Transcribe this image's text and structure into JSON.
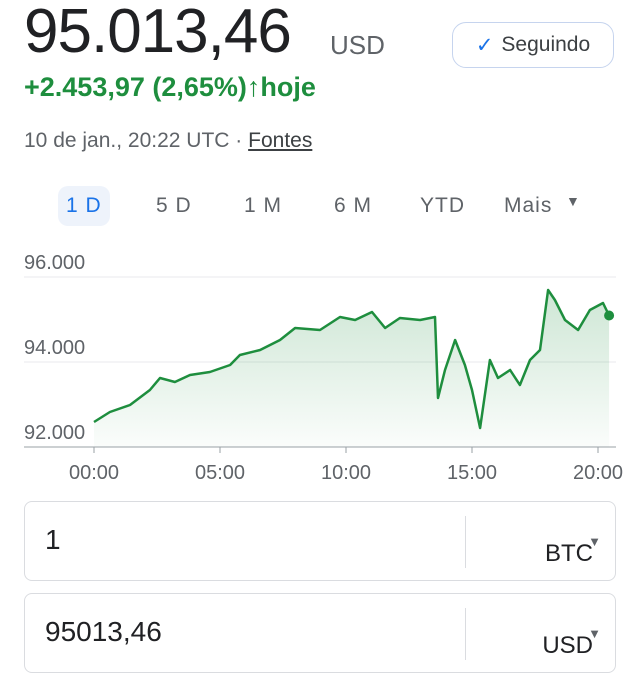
{
  "header": {
    "price": "95.013,46",
    "currency": "USD",
    "follow_button": "Seguindo",
    "change": "+2.453,97 (2,65%)",
    "change_period": "hoje",
    "timestamp": "10 de jan., 20:22 UTC ·",
    "sources_link": "Fontes"
  },
  "tabs": [
    "1 D",
    "5 D",
    "1 M",
    "6 M",
    "YTD",
    "Mais"
  ],
  "chart_data": {
    "type": "line",
    "color": "#1e8e3e",
    "grid": true,
    "x": [
      0,
      0.63,
      1.43,
      2.22,
      2.62,
      3.21,
      3.81,
      4.6,
      5.4,
      5.79,
      6.59,
      7.38,
      7.98,
      8.97,
      9.76,
      10.36,
      11.03,
      11.55,
      12.14,
      12.94,
      13.53,
      13.65,
      13.93,
      14.33,
      14.72,
      15,
      15.32,
      15.71,
      16.03,
      16.51,
      16.9,
      17.3,
      17.7,
      18.02,
      18.29,
      18.69,
      19.21,
      19.68,
      20.2,
      20.44
    ],
    "values": [
      92588,
      92824,
      92988,
      93341,
      93624,
      93529,
      93694,
      93765,
      93929,
      94165,
      94282,
      94518,
      94800,
      94753,
      95059,
      94988,
      95176,
      94800,
      95035,
      94988,
      95059,
      93153,
      93812,
      94518,
      93929,
      93341,
      92447,
      94047,
      93624,
      93812,
      93459,
      94047,
      94282,
      95694,
      95459,
      94988,
      94753,
      95224,
      95388,
      95094
    ],
    "xlim": [
      0,
      20.5
    ],
    "ylim": [
      92000,
      96600
    ],
    "xticks": [
      {
        "value": 0,
        "label": "00:00"
      },
      {
        "value": 5,
        "label": "05:00"
      },
      {
        "value": 10,
        "label": "10:00"
      },
      {
        "value": 15,
        "label": "15:00"
      },
      {
        "value": 20,
        "label": "20:00"
      }
    ],
    "yticks": [
      {
        "value": 92000,
        "label": "92.000"
      },
      {
        "value": 94000,
        "label": "94.000"
      },
      {
        "value": 96000,
        "label": "96.000"
      }
    ]
  },
  "converter": [
    {
      "amount": "1",
      "unit": "BTC"
    },
    {
      "amount": "95013,46",
      "unit": "USD"
    }
  ]
}
